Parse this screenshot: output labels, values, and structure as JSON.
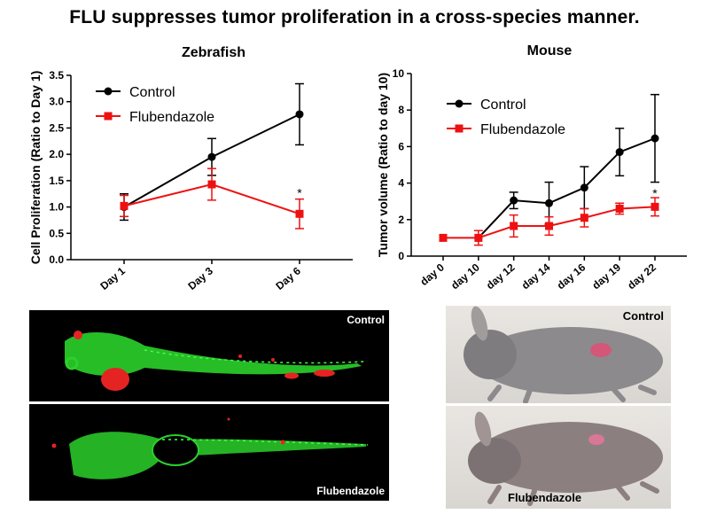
{
  "page": {
    "title": "FLU suppresses tumor proliferation in a cross-species manner."
  },
  "colors": {
    "control": "#000000",
    "treatment": "#ee1111"
  },
  "chart_data": [
    {
      "type": "line",
      "title": "Zebrafish",
      "xlabel": "",
      "ylabel": "Cell Proliferation (Ratio to Day 1)",
      "categories": [
        "Day 1",
        "Day 3",
        "Day 6"
      ],
      "ylim": [
        0,
        3.5
      ],
      "yticks": [
        "0.0",
        "0.5",
        "1.0",
        "1.5",
        "2.0",
        "2.5",
        "3.0",
        "3.5"
      ],
      "legend_position": "top-left",
      "grid": false,
      "series": [
        {
          "name": "Control",
          "marker": "circle",
          "values": [
            1.0,
            1.95,
            2.76
          ],
          "errors": [
            0.25,
            0.35,
            0.58
          ]
        },
        {
          "name": "Flubendazole",
          "marker": "square",
          "values": [
            1.02,
            1.43,
            0.87
          ],
          "errors": [
            0.2,
            0.3,
            0.28
          ]
        }
      ],
      "annotations": [
        {
          "text": "*",
          "category": "Day 6",
          "y": 1.27
        }
      ]
    },
    {
      "type": "line",
      "title": "Mouse",
      "xlabel": "",
      "ylabel": "Tumor volume (Ratio to day 10)",
      "categories": [
        "day 0",
        "day 10",
        "day 12",
        "day 14",
        "day 16",
        "day 19",
        "day 22"
      ],
      "ylim": [
        0,
        10
      ],
      "yticks": [
        "0",
        "2",
        "4",
        "6",
        "8",
        "10"
      ],
      "legend_position": "top-left",
      "grid": false,
      "series": [
        {
          "name": "Control",
          "marker": "circle",
          "values": [
            null,
            1.0,
            3.05,
            2.9,
            3.75,
            5.7,
            6.45
          ],
          "errors": [
            0,
            0,
            0.45,
            1.15,
            1.15,
            1.3,
            2.4
          ]
        },
        {
          "name": "Flubendazole",
          "marker": "square",
          "values": [
            1.0,
            1.0,
            1.65,
            1.65,
            2.1,
            2.6,
            2.7
          ],
          "errors": [
            0,
            0.4,
            0.6,
            0.5,
            0.5,
            0.3,
            0.5
          ]
        }
      ],
      "annotations": [
        {
          "text": "*",
          "category": "day 22",
          "y": 3.45
        }
      ]
    }
  ],
  "panels": {
    "zebrafish_top_label": "Control",
    "zebrafish_bottom_label": "Flubendazole",
    "mouse_top_label": "Control",
    "mouse_bottom_label": "Flubendazole"
  }
}
